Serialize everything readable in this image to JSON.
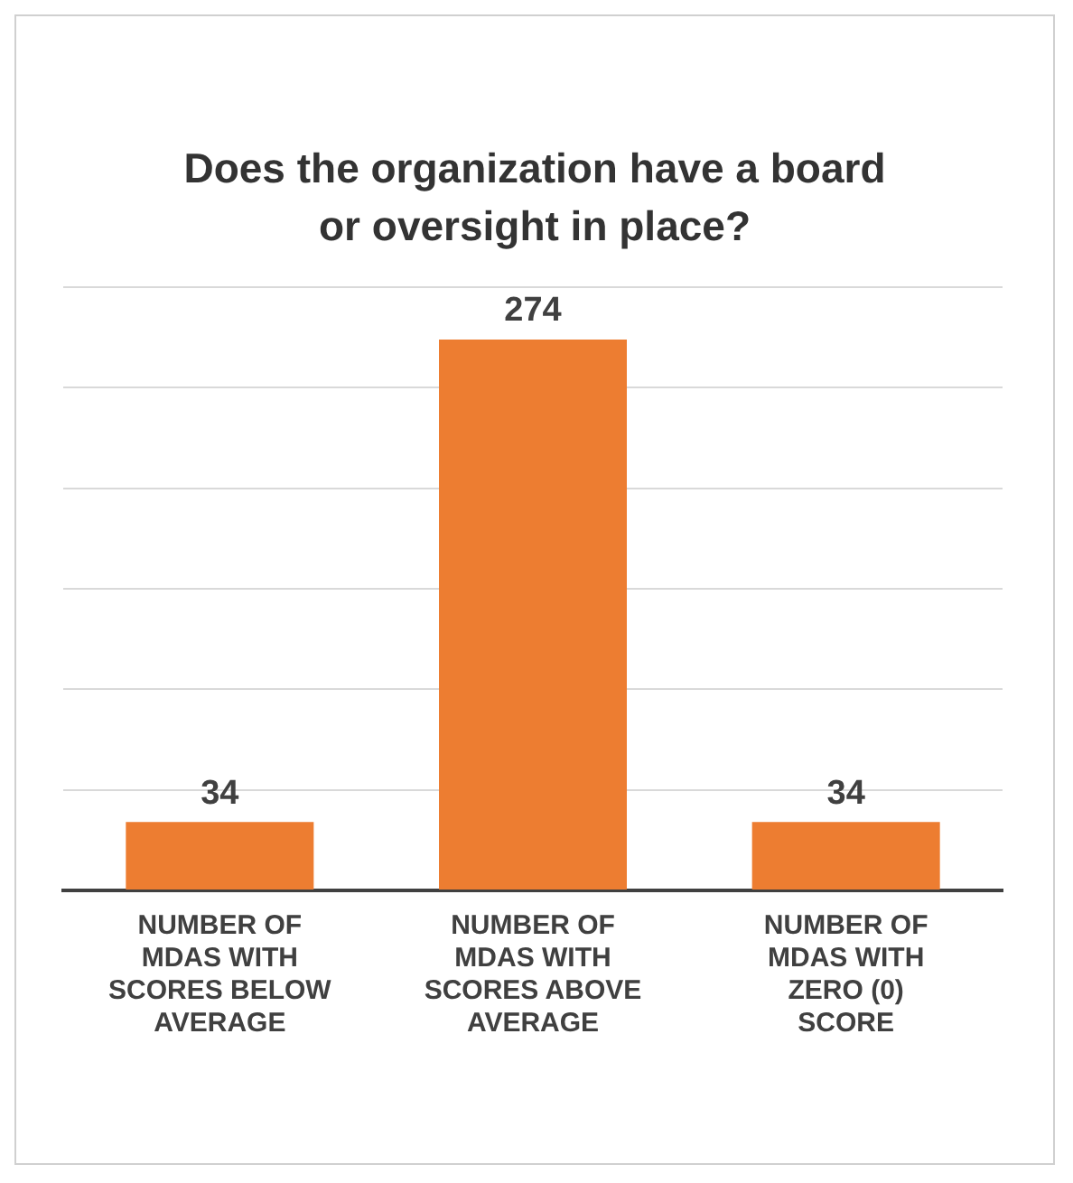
{
  "chart_data": {
    "type": "bar",
    "title": "Does the organization have a board or oversight in place?",
    "categories": [
      "NUMBER OF MDAS WITH SCORES BELOW AVERAGE",
      "NUMBER OF MDAS WITH SCORES ABOVE AVERAGE",
      "NUMBER OF MDAS WITH ZERO (0) SCORE"
    ],
    "values": [
      34,
      274,
      34
    ],
    "color": "#ed7d31",
    "ylim": [
      0,
      300
    ],
    "yticks": [
      {
        "value": 0,
        "label": null
      },
      {
        "value": 50,
        "label": null
      },
      {
        "value": 100,
        "label": null
      },
      {
        "value": 150,
        "label": null
      },
      {
        "value": 200,
        "label": null
      },
      {
        "value": 250,
        "label": null
      },
      {
        "value": 300,
        "label": null
      }
    ],
    "grid": "y",
    "tick_labels": "x",
    "data_labels": true
  }
}
